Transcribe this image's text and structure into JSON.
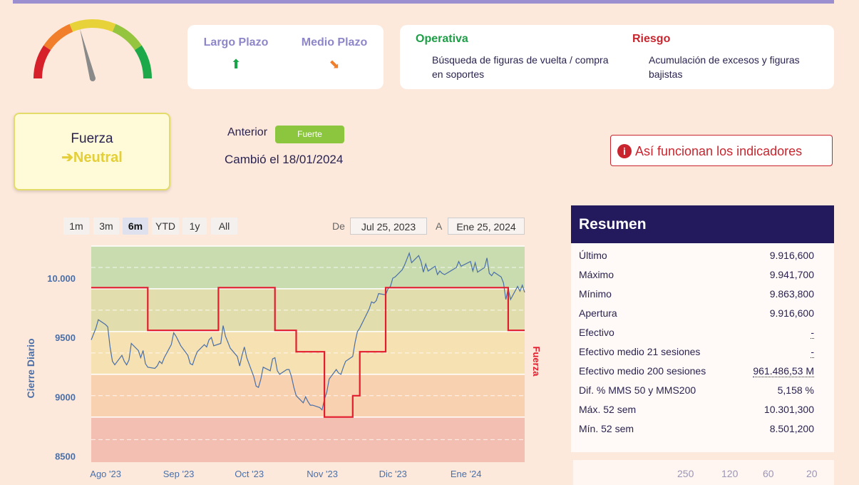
{
  "gauge": {
    "colors": [
      "#d6202a",
      "#f07e2a",
      "#e8d23a",
      "#95c53f",
      "#1da94a"
    ],
    "needle_level": 0.42
  },
  "plazo": {
    "largo": {
      "label": "Largo Plazo",
      "arrow": "⬆",
      "color": "#19a44a"
    },
    "medio": {
      "label": "Medio Plazo",
      "arrow": "⬊",
      "color": "#f07e2a"
    }
  },
  "operativa": {
    "title": "Operativa",
    "text": "Búsqueda de figuras de vuelta / compra en soportes",
    "color": "#1e9e46"
  },
  "riesgo": {
    "title": "Riesgo",
    "text": "Acumulación de excesos y figuras bajistas",
    "color": "#c9252e"
  },
  "fuerza": {
    "label": "Fuerza",
    "value": "➔Neutral"
  },
  "anterior": {
    "label": "Anterior",
    "badge": "Fuerte",
    "cambio": "Cambió el 18/01/2024"
  },
  "info_button": {
    "icon": "i",
    "label": "Así funcionan los indicadores"
  },
  "range_buttons": [
    "1m",
    "3m",
    "6m",
    "YTD",
    "1y",
    "All"
  ],
  "range_selected": "6m",
  "date_range": {
    "from_label": "De",
    "from": "Jul 25, 2023",
    "to_label": "A",
    "to": "Ene 25, 2024"
  },
  "chart_data": {
    "type": "line",
    "ylabel": "Cierre Diario",
    "y2label": "Fuerza",
    "ylim": [
      8450,
      10270
    ],
    "yticks": [
      8500,
      9000,
      9500,
      10000
    ],
    "ytick_labels": [
      "8500",
      "9000",
      "9500",
      "10.000"
    ],
    "x_range": [
      "2023-07-25",
      "2024-01-25"
    ],
    "xtick_labels": [
      {
        "date": "2023-08-01",
        "label": "Ago '23"
      },
      {
        "date": "2023-09-01",
        "label": "Sep '23"
      },
      {
        "date": "2023-10-01",
        "label": "Oct '23"
      },
      {
        "date": "2023-11-01",
        "label": "Nov '23"
      },
      {
        "date": "2023-12-01",
        "label": "Dic '23"
      },
      {
        "date": "2024-01-01",
        "label": "Ene '24"
      }
    ],
    "bands": [
      {
        "from": 9910,
        "to": 10270,
        "color": "#c9dcb0"
      },
      {
        "from": 9550,
        "to": 9910,
        "color": "#e2ddac"
      },
      {
        "from": 9190,
        "to": 9550,
        "color": "#f5e1b2"
      },
      {
        "from": 8830,
        "to": 9190,
        "color": "#f8d2b0"
      },
      {
        "from": 8450,
        "to": 8830,
        "color": "#f3bfb3"
      }
    ],
    "series": [
      {
        "name": "Cierre Diario",
        "color": "#4a6fa8",
        "points": [
          [
            "2023-07-25",
            9480
          ],
          [
            "2023-07-27",
            9580
          ],
          [
            "2023-07-28",
            9650
          ],
          [
            "2023-07-31",
            9610
          ],
          [
            "2023-08-01",
            9590
          ],
          [
            "2023-08-02",
            9420
          ],
          [
            "2023-08-03",
            9300
          ],
          [
            "2023-08-04",
            9270
          ],
          [
            "2023-08-07",
            9350
          ],
          [
            "2023-08-08",
            9300
          ],
          [
            "2023-08-09",
            9270
          ],
          [
            "2023-08-10",
            9310
          ],
          [
            "2023-08-11",
            9450
          ],
          [
            "2023-08-14",
            9390
          ],
          [
            "2023-08-15",
            9330
          ],
          [
            "2023-08-16",
            9390
          ],
          [
            "2023-08-17",
            9280
          ],
          [
            "2023-08-18",
            9250
          ],
          [
            "2023-08-21",
            9240
          ],
          [
            "2023-08-22",
            9260
          ],
          [
            "2023-08-23",
            9300
          ],
          [
            "2023-08-24",
            9280
          ],
          [
            "2023-08-25",
            9330
          ],
          [
            "2023-08-28",
            9440
          ],
          [
            "2023-08-29",
            9540
          ],
          [
            "2023-08-30",
            9510
          ],
          [
            "2023-08-31",
            9470
          ],
          [
            "2023-09-01",
            9430
          ],
          [
            "2023-09-04",
            9350
          ],
          [
            "2023-09-05",
            9280
          ],
          [
            "2023-09-06",
            9270
          ],
          [
            "2023-09-07",
            9330
          ],
          [
            "2023-09-08",
            9380
          ],
          [
            "2023-09-11",
            9440
          ],
          [
            "2023-09-12",
            9420
          ],
          [
            "2023-09-13",
            9480
          ],
          [
            "2023-09-14",
            9500
          ],
          [
            "2023-09-15",
            9430
          ],
          [
            "2023-09-18",
            9450
          ],
          [
            "2023-09-19",
            9600
          ],
          [
            "2023-09-20",
            9510
          ],
          [
            "2023-09-21",
            9460
          ],
          [
            "2023-09-22",
            9410
          ],
          [
            "2023-09-25",
            9340
          ],
          [
            "2023-09-26",
            9260
          ],
          [
            "2023-09-27",
            9350
          ],
          [
            "2023-09-28",
            9420
          ],
          [
            "2023-09-29",
            9330
          ],
          [
            "2023-10-02",
            9170
          ],
          [
            "2023-10-03",
            9090
          ],
          [
            "2023-10-04",
            9080
          ],
          [
            "2023-10-05",
            9150
          ],
          [
            "2023-10-06",
            9250
          ],
          [
            "2023-10-09",
            9220
          ],
          [
            "2023-10-10",
            9320
          ],
          [
            "2023-10-11",
            9330
          ],
          [
            "2023-10-12",
            9220
          ],
          [
            "2023-10-13",
            9190
          ],
          [
            "2023-10-16",
            9230
          ],
          [
            "2023-10-17",
            9230
          ],
          [
            "2023-10-18",
            9170
          ],
          [
            "2023-10-19",
            9080
          ],
          [
            "2023-10-20",
            9010
          ],
          [
            "2023-10-23",
            8950
          ],
          [
            "2023-10-24",
            9000
          ],
          [
            "2023-10-25",
            8960
          ],
          [
            "2023-10-26",
            8930
          ],
          [
            "2023-10-27",
            8930
          ],
          [
            "2023-10-30",
            8910
          ],
          [
            "2023-10-31",
            8890
          ],
          [
            "2023-11-01",
            8980
          ],
          [
            "2023-11-02",
            9040
          ],
          [
            "2023-11-03",
            9150
          ],
          [
            "2023-11-06",
            9230
          ],
          [
            "2023-11-07",
            9200
          ],
          [
            "2023-11-08",
            9190
          ],
          [
            "2023-11-09",
            9250
          ],
          [
            "2023-11-10",
            9300
          ],
          [
            "2023-11-13",
            9340
          ],
          [
            "2023-11-14",
            9460
          ],
          [
            "2023-11-15",
            9550
          ],
          [
            "2023-11-16",
            9580
          ],
          [
            "2023-11-17",
            9620
          ],
          [
            "2023-11-20",
            9740
          ],
          [
            "2023-11-21",
            9800
          ],
          [
            "2023-11-22",
            9790
          ],
          [
            "2023-11-23",
            9810
          ],
          [
            "2023-11-24",
            9870
          ],
          [
            "2023-11-27",
            9860
          ],
          [
            "2023-11-28",
            9910
          ],
          [
            "2023-11-29",
            9930
          ],
          [
            "2023-11-30",
            10000
          ],
          [
            "2023-12-01",
            10010
          ],
          [
            "2023-12-04",
            10070
          ],
          [
            "2023-12-05",
            10110
          ],
          [
            "2023-12-06",
            10160
          ],
          [
            "2023-12-07",
            10210
          ],
          [
            "2023-12-08",
            10130
          ],
          [
            "2023-12-11",
            10190
          ],
          [
            "2023-12-12",
            10140
          ],
          [
            "2023-12-13",
            10050
          ],
          [
            "2023-12-14",
            10120
          ],
          [
            "2023-12-15",
            10060
          ],
          [
            "2023-12-18",
            10100
          ],
          [
            "2023-12-19",
            10030
          ],
          [
            "2023-12-20",
            10060
          ],
          [
            "2023-12-21",
            10040
          ],
          [
            "2023-12-22",
            10030
          ],
          [
            "2023-12-27",
            10090
          ],
          [
            "2023-12-28",
            10140
          ],
          [
            "2023-12-29",
            10100
          ],
          [
            "2024-01-02",
            10140
          ],
          [
            "2024-01-03",
            10060
          ],
          [
            "2024-01-04",
            10130
          ],
          [
            "2024-01-05",
            10050
          ],
          [
            "2024-01-08",
            10090
          ],
          [
            "2024-01-09",
            10170
          ],
          [
            "2024-01-10",
            10040
          ],
          [
            "2024-01-11",
            10020
          ],
          [
            "2024-01-12",
            10050
          ],
          [
            "2024-01-15",
            10010
          ],
          [
            "2024-01-16",
            9960
          ],
          [
            "2024-01-17",
            9820
          ],
          [
            "2024-01-18",
            9910
          ],
          [
            "2024-01-19",
            9820
          ],
          [
            "2024-01-22",
            9930
          ],
          [
            "2024-01-23",
            9890
          ],
          [
            "2024-01-24",
            9940
          ],
          [
            "2024-01-25",
            9880
          ]
        ]
      },
      {
        "name": "Fuerza",
        "color": "#e11d2e",
        "step": true,
        "points": [
          [
            "2023-07-25",
            9920
          ],
          [
            "2023-08-18",
            9920
          ],
          [
            "2023-08-18",
            9560
          ],
          [
            "2023-09-17",
            9560
          ],
          [
            "2023-09-17",
            9920
          ],
          [
            "2023-10-11",
            9920
          ],
          [
            "2023-10-11",
            9560
          ],
          [
            "2023-10-20",
            9560
          ],
          [
            "2023-10-20",
            9380
          ],
          [
            "2023-11-01",
            9380
          ],
          [
            "2023-11-01",
            8830
          ],
          [
            "2023-11-13",
            8830
          ],
          [
            "2023-11-13",
            9010
          ],
          [
            "2023-11-16",
            9010
          ],
          [
            "2023-11-16",
            9380
          ],
          [
            "2023-11-27",
            9380
          ],
          [
            "2023-11-27",
            9920
          ],
          [
            "2024-01-18",
            9920
          ],
          [
            "2024-01-18",
            9560
          ],
          [
            "2024-01-25",
            9560
          ]
        ]
      }
    ]
  },
  "resumen": {
    "title": "Resumen",
    "rows": [
      {
        "label": "Último",
        "value": "9.916,600"
      },
      {
        "label": "Máximo",
        "value": "9.941,700"
      },
      {
        "label": "Mínimo",
        "value": "9.863,800"
      },
      {
        "label": "Apertura",
        "value": "9.916,600"
      },
      {
        "label": "Efectivo",
        "value": "-"
      },
      {
        "label": "Efectivo medio 21 sesiones",
        "value": "-"
      },
      {
        "label": "Efectivo medio 200 sesiones",
        "value": "961.486,53 M"
      },
      {
        "label": "Dif. % MMS 50 y MMS200",
        "value": "5,158 %"
      },
      {
        "label": "Máx. 52 sem",
        "value": "10.301,300"
      },
      {
        "label": "Mín. 52 sem",
        "value": "8.501,200"
      }
    ]
  },
  "bottom_headers": [
    "250",
    "120",
    "60",
    "20"
  ]
}
